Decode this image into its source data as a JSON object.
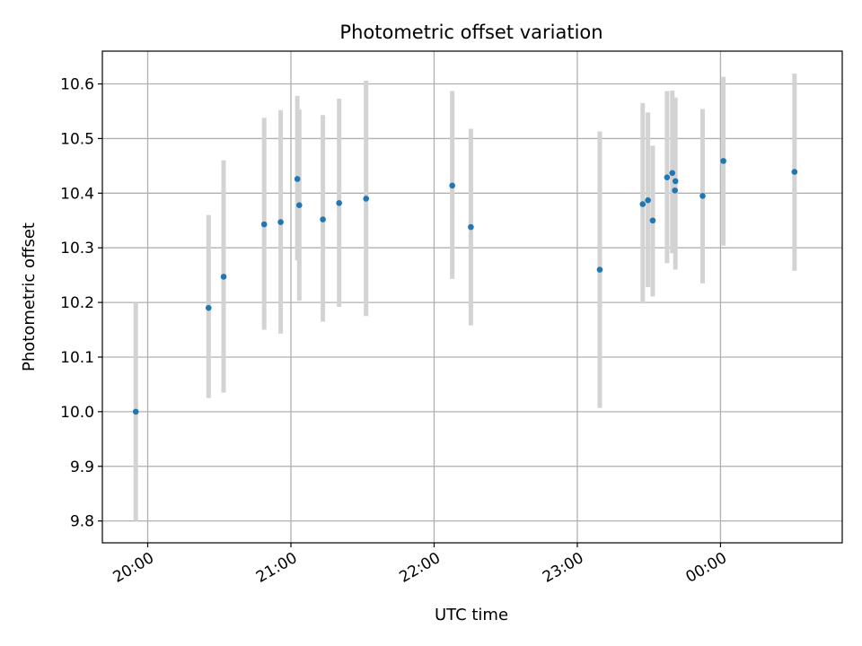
{
  "chart_data": {
    "type": "scatter",
    "title": "Photometric offset variation",
    "xlabel": "UTC time",
    "ylabel": "Photometric offset",
    "x_tick_labels": [
      "20:00",
      "21:00",
      "22:00",
      "23:00",
      "00:00"
    ],
    "x_tick_minutes": [
      1200,
      1260,
      1320,
      1380,
      1440
    ],
    "y_ticks": [
      "9.8",
      "9.9",
      "10.0",
      "10.1",
      "10.2",
      "10.3",
      "10.4",
      "10.5",
      "10.6"
    ],
    "y_tick_values": [
      9.8,
      9.9,
      10.0,
      10.1,
      10.2,
      10.3,
      10.4,
      10.5,
      10.6
    ],
    "xlim_minutes": [
      1181,
      1491
    ],
    "ylim": [
      9.76,
      10.66
    ],
    "grid": true,
    "legend": "none",
    "series": [
      {
        "marker_color": "#1f77b4",
        "errorbar_color": "#d3d3d3",
        "points": [
          {
            "t": 1195.0,
            "y": 10.0,
            "lo": 9.8,
            "hi": 10.2
          },
          {
            "t": 1225.5,
            "y": 10.19,
            "lo": 10.025,
            "hi": 10.36
          },
          {
            "t": 1231.8,
            "y": 10.247,
            "lo": 10.035,
            "hi": 10.46
          },
          {
            "t": 1248.8,
            "y": 10.343,
            "lo": 10.15,
            "hi": 10.538
          },
          {
            "t": 1255.7,
            "y": 10.347,
            "lo": 10.143,
            "hi": 10.552
          },
          {
            "t": 1262.7,
            "y": 10.426,
            "lo": 10.277,
            "hi": 10.578
          },
          {
            "t": 1263.5,
            "y": 10.378,
            "lo": 10.203,
            "hi": 10.553
          },
          {
            "t": 1273.4,
            "y": 10.352,
            "lo": 10.165,
            "hi": 10.543
          },
          {
            "t": 1280.2,
            "y": 10.382,
            "lo": 10.192,
            "hi": 10.573
          },
          {
            "t": 1291.5,
            "y": 10.39,
            "lo": 10.175,
            "hi": 10.606
          },
          {
            "t": 1327.6,
            "y": 10.414,
            "lo": 10.243,
            "hi": 10.587
          },
          {
            "t": 1335.4,
            "y": 10.338,
            "lo": 10.158,
            "hi": 10.518
          },
          {
            "t": 1389.4,
            "y": 10.26,
            "lo": 10.007,
            "hi": 10.513
          },
          {
            "t": 1407.4,
            "y": 10.38,
            "lo": 10.198,
            "hi": 10.565
          },
          {
            "t": 1409.6,
            "y": 10.387,
            "lo": 10.228,
            "hi": 10.548
          },
          {
            "t": 1411.6,
            "y": 10.35,
            "lo": 10.211,
            "hi": 10.487
          },
          {
            "t": 1417.6,
            "y": 10.429,
            "lo": 10.272,
            "hi": 10.587
          },
          {
            "t": 1419.8,
            "y": 10.437,
            "lo": 10.29,
            "hi": 10.588
          },
          {
            "t": 1421.1,
            "y": 10.422,
            "lo": 10.26,
            "hi": 10.575
          },
          {
            "t": 1420.9,
            "y": 10.405,
            "lo": 10.405,
            "hi": 10.405
          },
          {
            "t": 1432.5,
            "y": 10.395,
            "lo": 10.235,
            "hi": 10.554
          },
          {
            "t": 1441.2,
            "y": 10.459,
            "lo": 10.304,
            "hi": 10.613
          },
          {
            "t": 1471.0,
            "y": 10.439,
            "lo": 10.258,
            "hi": 10.619
          }
        ]
      }
    ]
  }
}
